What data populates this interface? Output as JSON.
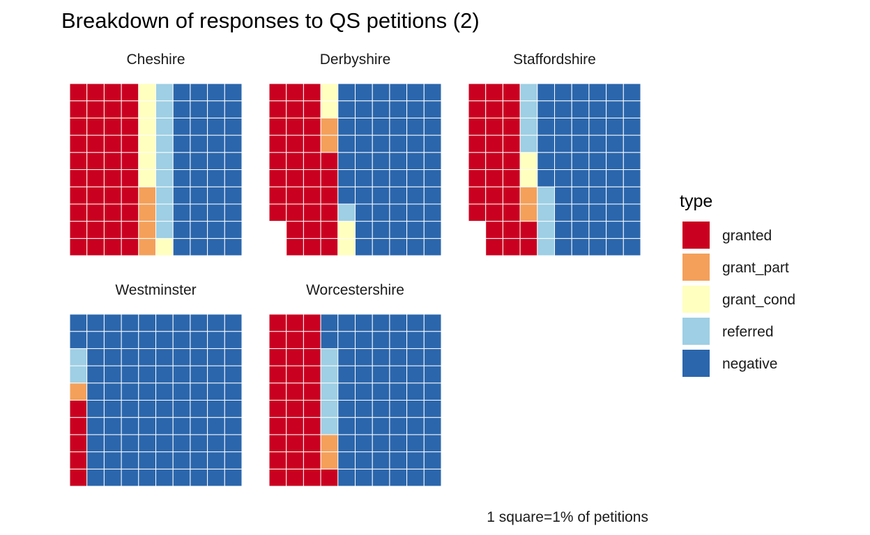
{
  "chart_data": {
    "type": "waffle",
    "title": "Breakdown of responses to QS petitions (2)",
    "caption": "1 square=1% of petitions",
    "legend": {
      "title": "type",
      "placement": "right",
      "entries": [
        {
          "name": "granted",
          "color": "#CA0020"
        },
        {
          "name": "grant_part",
          "color": "#F4A05A"
        },
        {
          "name": "grant_cond",
          "color": "#FFFFBF"
        },
        {
          "name": "referred",
          "color": "#9ECFE4"
        },
        {
          "name": "negative",
          "color": "#2B66AC"
        }
      ]
    },
    "rows": 10,
    "panels": [
      {
        "name": "Cheshire",
        "counts": {
          "granted": 40,
          "grant_part": 4,
          "grant_cond": 7,
          "referred": 9,
          "negative": 40
        }
      },
      {
        "name": "Derbyshire",
        "counts": {
          "granted": 34,
          "grant_part": 2,
          "grant_cond": 4,
          "referred": 1,
          "negative": 57
        }
      },
      {
        "name": "Staffordshire",
        "counts": {
          "granted": 30,
          "grant_part": 2,
          "grant_cond": 2,
          "referred": 8,
          "negative": 56
        }
      },
      {
        "name": "Westminster",
        "counts": {
          "granted": 5,
          "grant_part": 1,
          "grant_cond": 0,
          "referred": 2,
          "negative": 92
        }
      },
      {
        "name": "Worcestershire",
        "counts": {
          "granted": 31,
          "grant_part": 2,
          "grant_cond": 0,
          "referred": 5,
          "negative": 62
        }
      }
    ]
  }
}
